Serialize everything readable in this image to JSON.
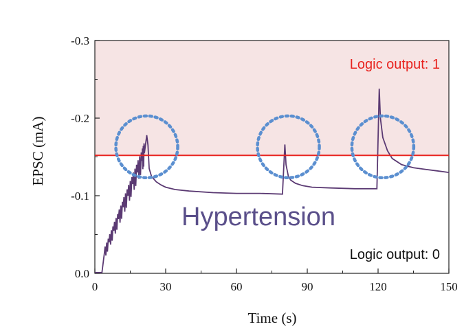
{
  "chart_data": {
    "type": "line",
    "title": "",
    "xlabel": "Time (s)",
    "ylabel": "EPSC (mA)",
    "xlim": [
      0,
      150
    ],
    "ylim": [
      0.0,
      -0.3
    ],
    "y_axis_inverted": true,
    "x_ticks": [
      0,
      30,
      60,
      90,
      120,
      150
    ],
    "x_tick_labels": [
      "0",
      "30",
      "60",
      "90",
      "120",
      "150"
    ],
    "y_ticks": [
      0.0,
      -0.1,
      -0.2,
      -0.3
    ],
    "y_tick_labels": [
      "0.0",
      "-0.1",
      "-0.2",
      "-0.3"
    ],
    "grid": false,
    "series": [
      {
        "color": "#5b3a73",
        "x": [
          0,
          3,
          4,
          6,
          8,
          10,
          12,
          14,
          16,
          18,
          20,
          21,
          22,
          22.5,
          23,
          24,
          26,
          28,
          30,
          34,
          40,
          50,
          60,
          70,
          79.5,
          80.5,
          81,
          82,
          83,
          85,
          88,
          92,
          100,
          110,
          119.5,
          120.5,
          121,
          122,
          124,
          126,
          130,
          135,
          140,
          145,
          150
        ],
        "y": [
          -0.001,
          -0.001,
          -0.025,
          -0.04,
          -0.055,
          -0.07,
          -0.085,
          -0.1,
          -0.115,
          -0.13,
          -0.145,
          -0.155,
          -0.178,
          -0.165,
          -0.135,
          -0.125,
          -0.118,
          -0.114,
          -0.111,
          -0.108,
          -0.106,
          -0.104,
          -0.103,
          -0.103,
          -0.102,
          -0.166,
          -0.14,
          -0.125,
          -0.12,
          -0.116,
          -0.113,
          -0.111,
          -0.11,
          -0.109,
          -0.109,
          -0.238,
          -0.2,
          -0.175,
          -0.158,
          -0.148,
          -0.14,
          -0.136,
          -0.134,
          -0.132,
          -0.13
        ]
      }
    ],
    "threshold_line": {
      "y": -0.152,
      "color": "#e8231f"
    },
    "annotations": {
      "high_text": "Logic output: 1",
      "low_text": "Logic output: 0",
      "center_text": "Hypertension",
      "highlight_circles_x": [
        22,
        82,
        122
      ]
    },
    "colors": {
      "shaded_region": "#f6e4e4",
      "series": "#5b3a73",
      "threshold": "#e8231f",
      "circles": "#5b8fd0",
      "center_text": "#5a4f8a"
    }
  }
}
